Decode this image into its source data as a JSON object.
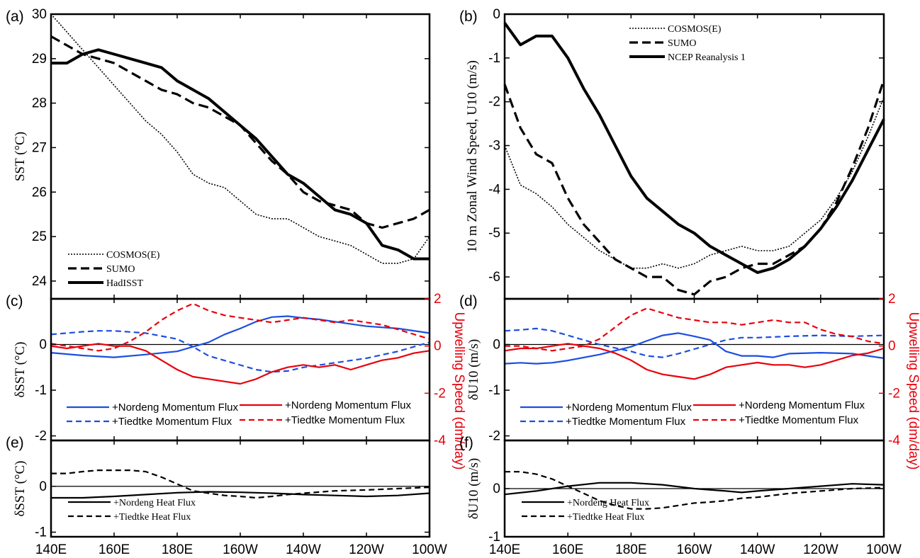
{
  "x_ticks": [
    "140E",
    "160E",
    "180E",
    "160W",
    "140W",
    "120W",
    "100W"
  ],
  "chart_data": [
    {
      "panel": "(a)",
      "type": "line",
      "ylabel": "SST (°C)",
      "ylim": [
        23.6,
        30
      ],
      "yticks": [
        "24",
        "25",
        "26",
        "27",
        "28",
        "29",
        "30"
      ],
      "legend": "bottom-left",
      "series": [
        {
          "name": "COSMOS(E)",
          "style": "dotted",
          "x": [
            140,
            145,
            150,
            155,
            160,
            165,
            170,
            175,
            180,
            185,
            190,
            195,
            200,
            205,
            210,
            215,
            220,
            225,
            230,
            235,
            240,
            245,
            250,
            255,
            260
          ],
          "values": [
            30.0,
            29.6,
            29.2,
            28.8,
            28.4,
            28.0,
            27.6,
            27.3,
            26.9,
            26.4,
            26.2,
            26.1,
            25.8,
            25.5,
            25.4,
            25.4,
            25.2,
            25.0,
            24.9,
            24.8,
            24.6,
            24.4,
            24.4,
            24.5,
            25.0
          ]
        },
        {
          "name": "SUMO",
          "style": "dashed",
          "x": [
            140,
            145,
            150,
            155,
            160,
            165,
            170,
            175,
            180,
            185,
            190,
            195,
            200,
            205,
            210,
            215,
            220,
            225,
            230,
            235,
            240,
            245,
            250,
            255,
            260
          ],
          "values": [
            29.5,
            29.3,
            29.1,
            29.0,
            28.9,
            28.7,
            28.5,
            28.3,
            28.2,
            28.0,
            27.9,
            27.7,
            27.5,
            27.1,
            26.7,
            26.4,
            26.0,
            25.8,
            25.7,
            25.6,
            25.3,
            25.2,
            25.3,
            25.4,
            25.6
          ]
        },
        {
          "name": "HadISST",
          "style": "solid",
          "x": [
            140,
            145,
            150,
            155,
            160,
            165,
            170,
            175,
            180,
            185,
            190,
            195,
            200,
            205,
            210,
            215,
            220,
            225,
            230,
            235,
            240,
            245,
            250,
            255,
            260
          ],
          "values": [
            28.9,
            28.9,
            29.1,
            29.2,
            29.1,
            29.0,
            28.9,
            28.8,
            28.5,
            28.3,
            28.1,
            27.8,
            27.5,
            27.2,
            26.8,
            26.4,
            26.2,
            25.9,
            25.6,
            25.5,
            25.3,
            24.8,
            24.7,
            24.5,
            24.5
          ]
        }
      ]
    },
    {
      "panel": "(b)",
      "type": "line",
      "ylabel": "10 m Zonal Wind Speed, U10 (m/s)",
      "ylim": [
        -6.5,
        0
      ],
      "yticks": [
        "-6",
        "-5",
        "-4",
        "-3",
        "-2",
        "-1",
        "0"
      ],
      "legend": "top-right",
      "series": [
        {
          "name": "COSMOS(E)",
          "style": "dotted",
          "x": [
            140,
            145,
            150,
            155,
            160,
            165,
            170,
            175,
            180,
            185,
            190,
            195,
            200,
            205,
            210,
            215,
            220,
            225,
            230,
            235,
            240,
            245,
            250,
            255,
            260
          ],
          "values": [
            -3.0,
            -3.9,
            -4.1,
            -4.4,
            -4.8,
            -5.1,
            -5.4,
            -5.6,
            -5.8,
            -5.8,
            -5.7,
            -5.8,
            -5.7,
            -5.5,
            -5.4,
            -5.3,
            -5.4,
            -5.4,
            -5.3,
            -5.0,
            -4.7,
            -4.2,
            -3.6,
            -2.8,
            -1.9
          ]
        },
        {
          "name": "SUMO",
          "style": "dashed",
          "x": [
            140,
            145,
            150,
            155,
            160,
            165,
            170,
            175,
            180,
            185,
            190,
            195,
            200,
            205,
            210,
            215,
            220,
            225,
            230,
            235,
            240,
            245,
            250,
            255,
            260
          ],
          "values": [
            -1.6,
            -2.6,
            -3.2,
            -3.4,
            -4.2,
            -4.8,
            -5.2,
            -5.6,
            -5.8,
            -6.0,
            -6.0,
            -6.3,
            -6.4,
            -6.1,
            -6.0,
            -5.8,
            -5.7,
            -5.7,
            -5.5,
            -5.3,
            -4.9,
            -4.3,
            -3.5,
            -2.6,
            -1.5
          ]
        },
        {
          "name": "NCEP Reanalysis 1",
          "style": "solid",
          "x": [
            140,
            145,
            150,
            155,
            160,
            165,
            170,
            175,
            180,
            185,
            190,
            195,
            200,
            205,
            210,
            215,
            220,
            225,
            230,
            235,
            240,
            245,
            250,
            255,
            260
          ],
          "values": [
            -0.2,
            -0.7,
            -0.5,
            -0.5,
            -1.0,
            -1.7,
            -2.3,
            -3.0,
            -3.7,
            -4.2,
            -4.5,
            -4.8,
            -5.0,
            -5.3,
            -5.5,
            -5.7,
            -5.9,
            -5.8,
            -5.6,
            -5.3,
            -4.9,
            -4.4,
            -3.8,
            -3.1,
            -2.4
          ]
        }
      ]
    },
    {
      "panel": "(c)",
      "type": "line",
      "ylabel": "δSST (°C)",
      "ylim": [
        -2.1,
        1.0
      ],
      "yticks": [
        "-2",
        "-1",
        "0"
      ],
      "y2label": "Upwelling Speed (dm/day)",
      "y2lim": [
        -4,
        2
      ],
      "y2ticks": [
        "-4",
        "-2",
        "0",
        "2"
      ],
      "legend": "bottom",
      "series": [
        {
          "name": "+Nordeng Momentum Flux",
          "style": "solid",
          "color": "#1a4fe0",
          "axis": "left",
          "x": [
            140,
            150,
            160,
            170,
            180,
            185,
            190,
            195,
            200,
            205,
            210,
            215,
            220,
            225,
            230,
            240,
            250,
            260
          ],
          "values": [
            -0.18,
            -0.24,
            -0.28,
            -0.22,
            -0.15,
            -0.05,
            0.05,
            0.22,
            0.35,
            0.5,
            0.6,
            0.62,
            0.58,
            0.55,
            0.5,
            0.4,
            0.35,
            0.25
          ]
        },
        {
          "name": "+Tiedtke Momentum Flux",
          "style": "dashed",
          "color": "#1a4fe0",
          "axis": "left",
          "x": [
            140,
            145,
            150,
            155,
            160,
            170,
            180,
            185,
            190,
            200,
            205,
            210,
            215,
            220,
            230,
            240,
            250,
            260
          ],
          "values": [
            0.22,
            0.25,
            0.28,
            0.3,
            0.3,
            0.25,
            0.12,
            -0.05,
            -0.25,
            -0.45,
            -0.55,
            -0.6,
            -0.58,
            -0.5,
            -0.4,
            -0.3,
            -0.15,
            0.05
          ]
        },
        {
          "name": "+Nordeng Momentum Flux",
          "style": "solid",
          "color": "#e8000b",
          "axis": "right",
          "x": [
            140,
            145,
            150,
            155,
            160,
            165,
            170,
            175,
            180,
            185,
            190,
            195,
            200,
            205,
            210,
            215,
            220,
            225,
            230,
            235,
            240,
            245,
            250,
            255,
            260
          ],
          "values": [
            0.0,
            -0.1,
            0.0,
            0.1,
            0.0,
            0.0,
            -0.2,
            -0.6,
            -1.0,
            -1.3,
            -1.4,
            -1.5,
            -1.6,
            -1.4,
            -1.1,
            -0.9,
            -0.8,
            -0.9,
            -0.8,
            -1.0,
            -0.8,
            -0.6,
            -0.5,
            -0.3,
            -0.2
          ]
        },
        {
          "name": "+Tiedtke Momentum Flux",
          "style": "dashed",
          "color": "#e8000b",
          "axis": "right",
          "x": [
            140,
            145,
            150,
            155,
            160,
            165,
            170,
            175,
            180,
            185,
            190,
            195,
            200,
            205,
            210,
            215,
            220,
            225,
            230,
            235,
            240,
            245,
            250,
            255,
            260
          ],
          "values": [
            0.1,
            0.0,
            -0.1,
            -0.2,
            -0.1,
            0.2,
            0.6,
            1.1,
            1.5,
            1.8,
            1.5,
            1.3,
            1.2,
            1.1,
            1.0,
            1.1,
            1.2,
            1.1,
            1.0,
            1.1,
            1.0,
            0.9,
            0.7,
            0.5,
            0.3
          ]
        }
      ]
    },
    {
      "panel": "(d)",
      "type": "line",
      "ylabel": "δU10 (m/s)",
      "ylim": [
        -2.1,
        1.0
      ],
      "yticks": [
        "-2",
        "-1",
        "0"
      ],
      "y2label": "Upwelling Speed (dm/day)",
      "y2lim": [
        -4,
        2
      ],
      "y2ticks": [
        "-4",
        "-2",
        "0",
        "2"
      ],
      "legend": "bottom",
      "series": [
        {
          "name": "+Nordeng Momentum Flux",
          "style": "solid",
          "color": "#1a4fe0",
          "axis": "left",
          "x": [
            140,
            145,
            150,
            155,
            160,
            170,
            180,
            185,
            190,
            195,
            200,
            205,
            210,
            215,
            220,
            225,
            230,
            240,
            250,
            260
          ],
          "values": [
            -0.42,
            -0.4,
            -0.42,
            -0.4,
            -0.35,
            -0.22,
            -0.05,
            0.08,
            0.2,
            0.25,
            0.18,
            0.1,
            -0.15,
            -0.25,
            -0.25,
            -0.28,
            -0.2,
            -0.18,
            -0.2,
            -0.3
          ]
        },
        {
          "name": "+Tiedtke Momentum Flux",
          "style": "dashed",
          "color": "#1a4fe0",
          "axis": "left",
          "x": [
            140,
            145,
            150,
            155,
            160,
            165,
            170,
            180,
            185,
            190,
            195,
            200,
            205,
            210,
            215,
            220,
            230,
            240,
            250,
            260
          ],
          "values": [
            0.3,
            0.32,
            0.35,
            0.3,
            0.2,
            0.1,
            0.0,
            -0.15,
            -0.25,
            -0.28,
            -0.2,
            -0.1,
            0.0,
            0.1,
            0.15,
            0.15,
            0.18,
            0.2,
            0.18,
            0.2
          ]
        },
        {
          "name": "+Nordeng Momentum Flux",
          "style": "solid",
          "color": "#e8000b",
          "axis": "right",
          "x": [
            140,
            145,
            150,
            155,
            160,
            165,
            170,
            175,
            180,
            185,
            190,
            195,
            200,
            205,
            210,
            215,
            220,
            225,
            230,
            235,
            240,
            245,
            250,
            255,
            260
          ],
          "values": [
            -0.2,
            -0.1,
            -0.1,
            0.0,
            0.1,
            0.0,
            -0.1,
            -0.3,
            -0.6,
            -1.0,
            -1.2,
            -1.3,
            -1.4,
            -1.2,
            -0.9,
            -0.8,
            -0.7,
            -0.8,
            -0.8,
            -0.9,
            -0.8,
            -0.6,
            -0.4,
            -0.3,
            -0.1
          ]
        },
        {
          "name": "+Tiedtke Momentum Flux",
          "style": "dashed",
          "color": "#e8000b",
          "axis": "right",
          "x": [
            140,
            145,
            150,
            155,
            160,
            165,
            170,
            175,
            180,
            185,
            190,
            195,
            200,
            205,
            210,
            215,
            220,
            225,
            230,
            235,
            240,
            245,
            250,
            255,
            260
          ],
          "values": [
            0.0,
            0.0,
            -0.1,
            -0.2,
            -0.1,
            0.0,
            0.3,
            0.8,
            1.3,
            1.6,
            1.4,
            1.2,
            1.1,
            1.0,
            1.0,
            0.9,
            1.0,
            1.1,
            1.0,
            1.0,
            0.7,
            0.5,
            0.4,
            0.2,
            0.1
          ]
        }
      ]
    },
    {
      "panel": "(e)",
      "type": "line",
      "ylabel": "δSST (°C)",
      "ylim": [
        -1.1,
        1.0
      ],
      "yticks": [
        "-1",
        "0"
      ],
      "legend": "bottom-left",
      "series": [
        {
          "name": "+Nordeng Heat Flux",
          "style": "solid",
          "color": "#000000",
          "x": [
            140,
            150,
            160,
            170,
            180,
            190,
            200,
            210,
            220,
            230,
            240,
            250,
            260
          ],
          "values": [
            -0.25,
            -0.25,
            -0.22,
            -0.18,
            -0.14,
            -0.12,
            -0.13,
            -0.15,
            -0.18,
            -0.2,
            -0.22,
            -0.2,
            -0.15
          ]
        },
        {
          "name": "+Tiedtke Heat Flux",
          "style": "dashed",
          "color": "#000000",
          "x": [
            140,
            145,
            150,
            155,
            160,
            165,
            170,
            175,
            180,
            185,
            190,
            195,
            200,
            205,
            210,
            215,
            220,
            230,
            240,
            250,
            260
          ],
          "values": [
            0.28,
            0.28,
            0.32,
            0.35,
            0.35,
            0.35,
            0.32,
            0.2,
            0.05,
            -0.1,
            -0.15,
            -0.2,
            -0.22,
            -0.25,
            -0.22,
            -0.18,
            -0.15,
            -0.1,
            -0.08,
            -0.05,
            -0.02
          ]
        }
      ]
    },
    {
      "panel": "(f)",
      "type": "line",
      "ylabel": "δU10 (m/s)",
      "ylim": [
        -1.0,
        1.0
      ],
      "yticks": [
        "-1",
        "0"
      ],
      "legend": "bottom-left",
      "series": [
        {
          "name": "+Nordeng Heat Flux",
          "style": "solid",
          "color": "#000000",
          "x": [
            140,
            150,
            160,
            170,
            180,
            190,
            200,
            210,
            215,
            220,
            230,
            240,
            250,
            260
          ],
          "values": [
            -0.12,
            -0.05,
            0.05,
            0.12,
            0.12,
            0.08,
            0.0,
            -0.05,
            -0.08,
            -0.05,
            0.0,
            0.05,
            0.1,
            0.08
          ]
        },
        {
          "name": "+Tiedtke Heat Flux",
          "style": "dashed",
          "color": "#000000",
          "x": [
            140,
            145,
            150,
            155,
            160,
            165,
            170,
            175,
            180,
            185,
            190,
            195,
            200,
            205,
            210,
            215,
            220,
            230,
            240,
            250,
            260
          ],
          "values": [
            0.35,
            0.35,
            0.3,
            0.2,
            0.05,
            -0.1,
            -0.25,
            -0.35,
            -0.42,
            -0.42,
            -0.4,
            -0.35,
            -0.3,
            -0.28,
            -0.25,
            -0.2,
            -0.18,
            -0.1,
            -0.05,
            0.0,
            0.02
          ]
        }
      ]
    }
  ]
}
